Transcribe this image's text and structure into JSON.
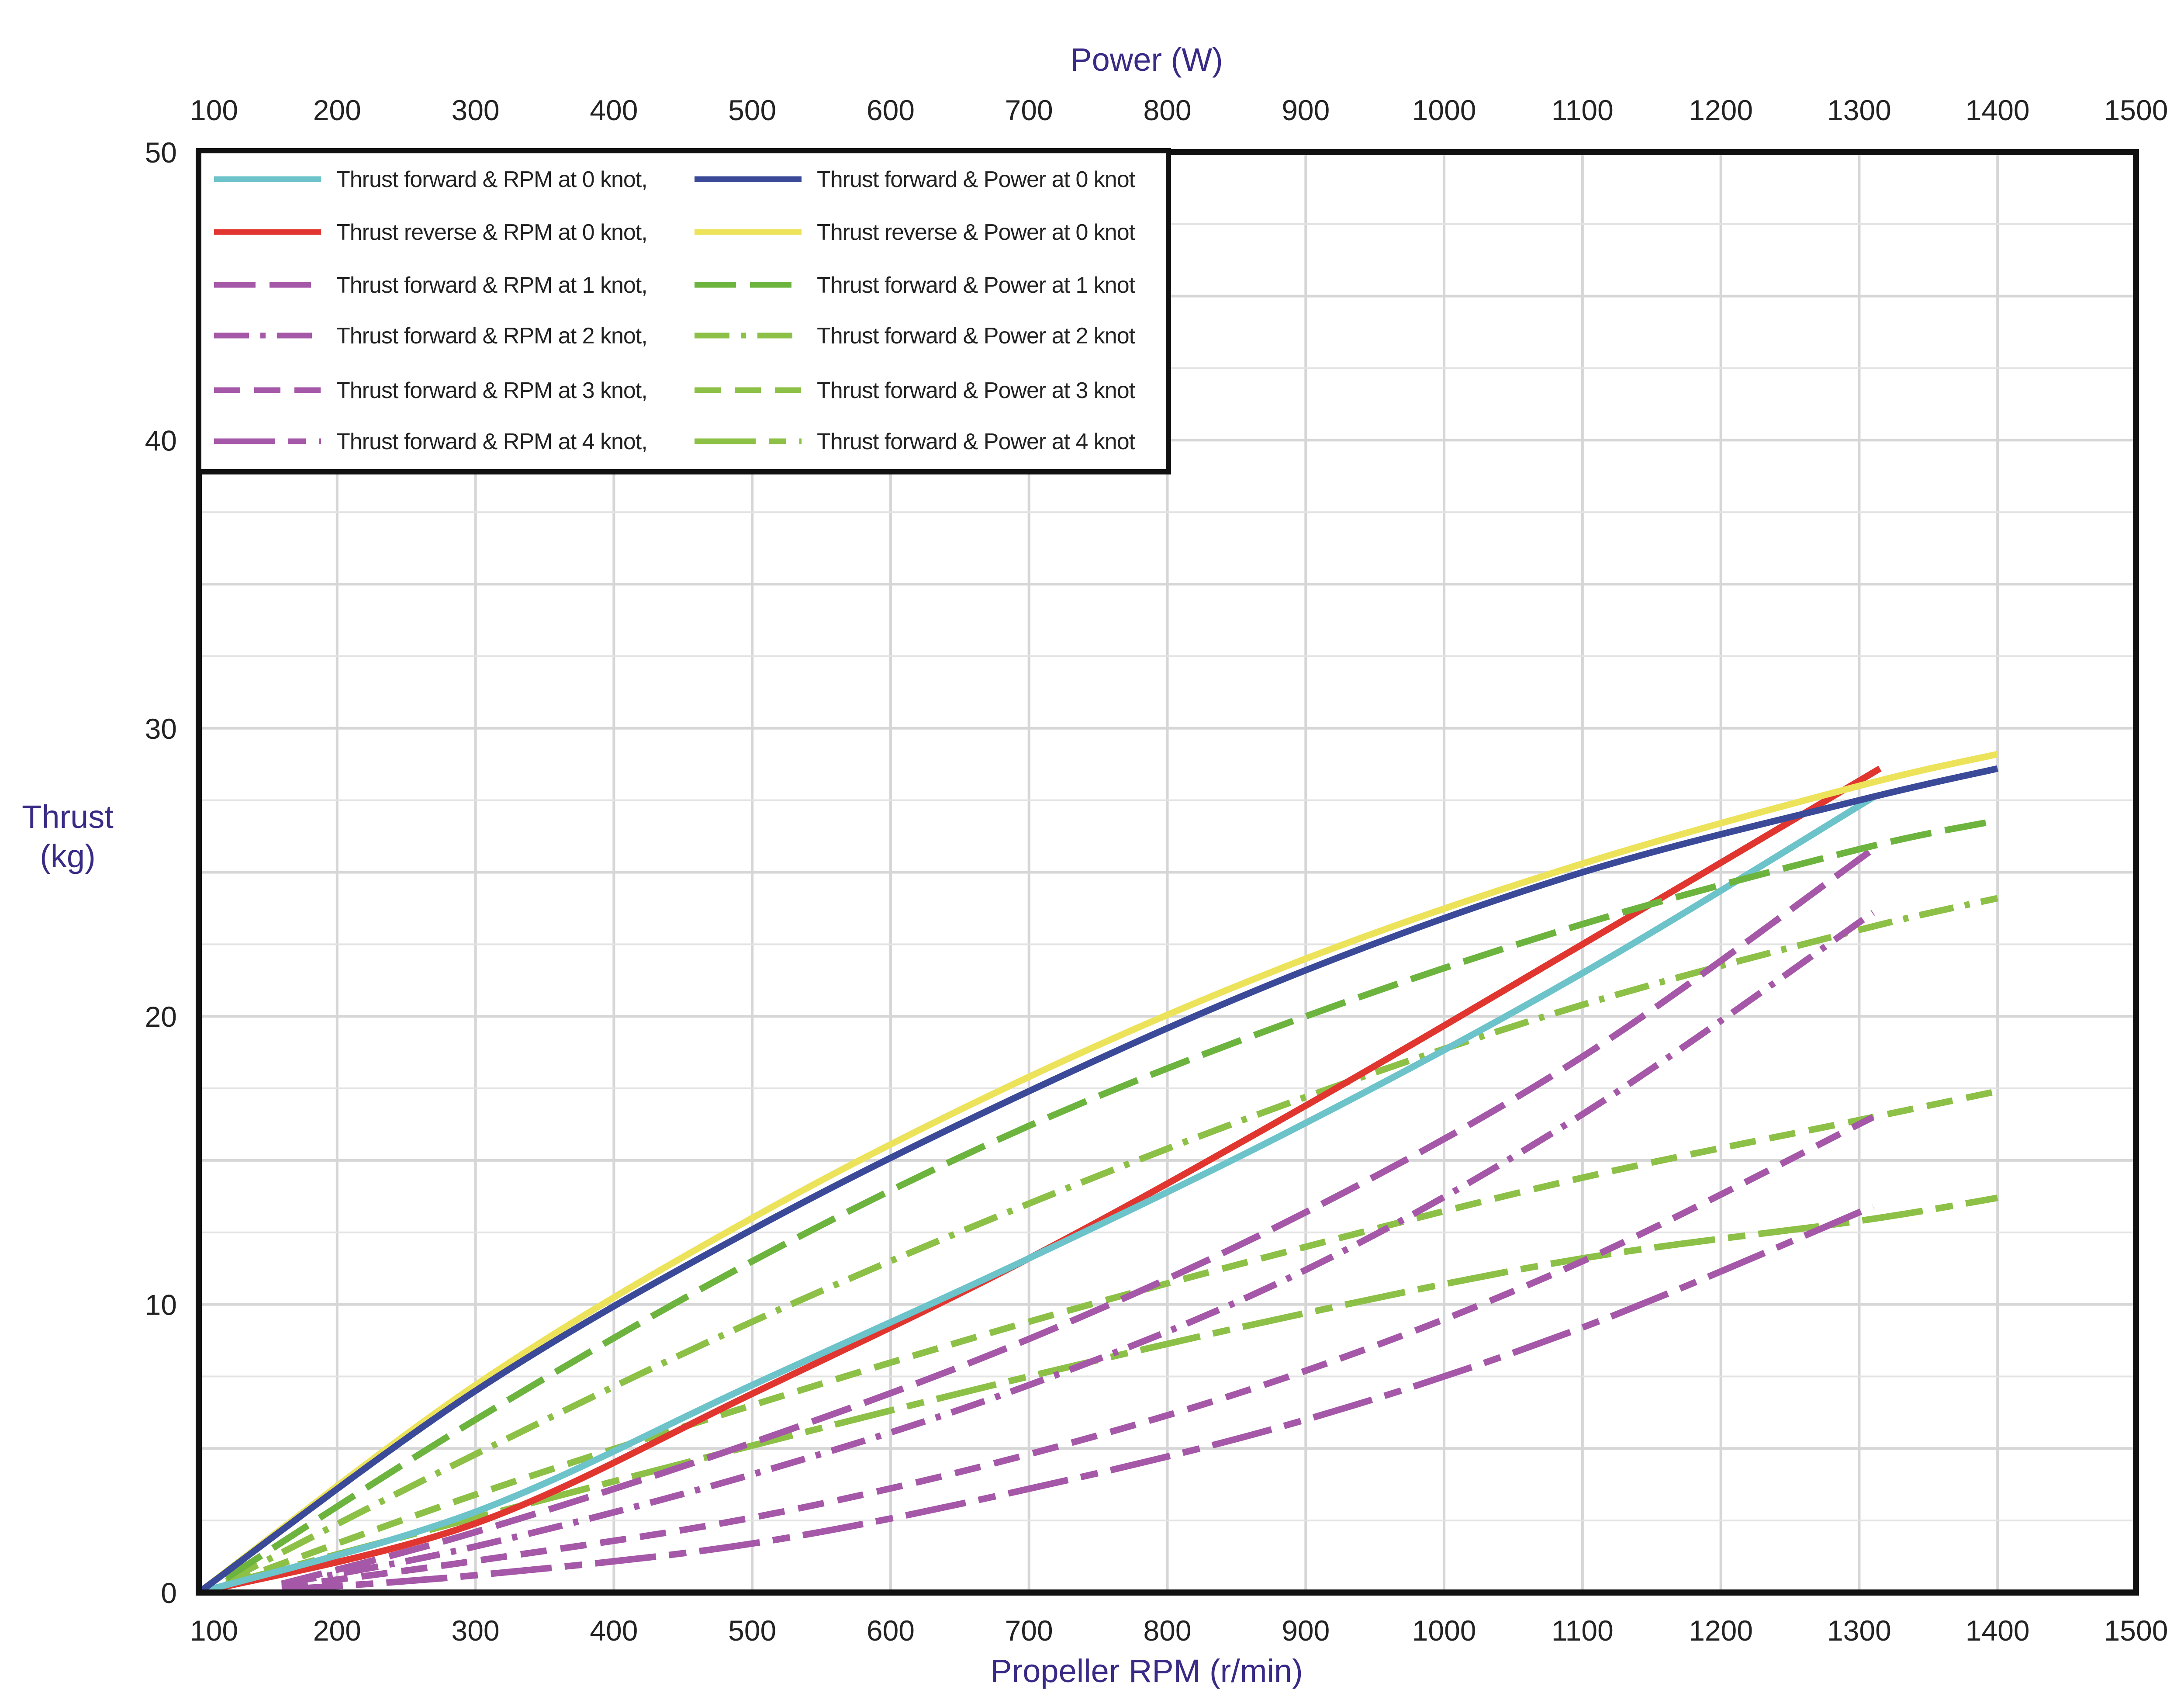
{
  "chart_data": {
    "type": "line",
    "title": "",
    "x_bottom": {
      "label": "Propeller RPM (r/min)",
      "range": [
        100,
        1500
      ],
      "ticks": [
        100,
        200,
        300,
        400,
        500,
        600,
        700,
        800,
        900,
        1000,
        1100,
        1200,
        1300,
        1400,
        1500
      ]
    },
    "x_top": {
      "label": "Power (W)",
      "range": [
        100,
        1500
      ],
      "ticks": [
        100,
        200,
        300,
        400,
        500,
        600,
        700,
        800,
        900,
        1000,
        1100,
        1200,
        1300,
        1400,
        1500
      ]
    },
    "y": {
      "label_line1": "Thrust",
      "label_line2": "(kg)",
      "range": [
        0,
        50
      ],
      "ticks": [
        0,
        10,
        20,
        30,
        40,
        50
      ]
    },
    "grid": true,
    "legend": {
      "placement": "top-left"
    },
    "series": [
      {
        "name": "Thrust forward &  RPM at 0 knot,",
        "axis": "rpm",
        "color": "#6cc3c9",
        "dash": "solid",
        "x": [
          100,
          300,
          500,
          700,
          900,
          1100,
          1310
        ],
        "y": [
          0,
          2.8,
          7.2,
          11.6,
          16.3,
          21.5,
          27.6
        ]
      },
      {
        "name": "Thrust reverse  &  RPM at 0 knot,",
        "axis": "rpm",
        "color": "#e1362f",
        "dash": "solid",
        "x": [
          100,
          300,
          500,
          700,
          900,
          1100,
          1315
        ],
        "y": [
          0,
          2.4,
          6.9,
          11.6,
          16.9,
          22.5,
          28.6
        ]
      },
      {
        "name": "Thrust forward &  RPM at 1 knot,",
        "axis": "rpm",
        "color": "#a557a8",
        "dash": "long",
        "x": [
          160,
          300,
          500,
          700,
          900,
          1100,
          1310
        ],
        "y": [
          0.3,
          2.1,
          5.2,
          8.8,
          13.2,
          18.6,
          25.8
        ]
      },
      {
        "name": "Thrust forward &  RPM at 2 knot,",
        "axis": "rpm",
        "color": "#a557a8",
        "dash": "dashdot",
        "x": [
          160,
          300,
          500,
          700,
          900,
          1100,
          1310
        ],
        "y": [
          0.3,
          1.6,
          4.1,
          7.2,
          11.2,
          16.6,
          23.6
        ]
      },
      {
        "name": "Thrust forward &  RPM at 3 knot,",
        "axis": "rpm",
        "color": "#a557a8",
        "dash": "medium",
        "x": [
          160,
          300,
          500,
          700,
          900,
          1100,
          1310
        ],
        "y": [
          0.2,
          1.1,
          2.6,
          4.8,
          7.7,
          11.5,
          16.5
        ]
      },
      {
        "name": "Thrust forward &  RPM at 4 knot,",
        "axis": "rpm",
        "color": "#a557a8",
        "dash": "dashlong",
        "x": [
          160,
          300,
          500,
          700,
          900,
          1100,
          1310
        ],
        "y": [
          0.1,
          0.6,
          1.7,
          3.6,
          6.0,
          9.2,
          13.4
        ]
      },
      {
        "name": "Thrust forward & Power at 0 knot",
        "axis": "power",
        "color": "#3b4a98",
        "dash": "solid",
        "x": [
          100,
          300,
          500,
          700,
          900,
          1100,
          1300,
          1400
        ],
        "y": [
          0,
          7.0,
          12.6,
          17.4,
          21.6,
          25.0,
          27.5,
          28.6
        ]
      },
      {
        "name": "Thrust reverse & Power at 0 knot",
        "axis": "power",
        "color": "#ece35a",
        "dash": "solid",
        "x": [
          100,
          300,
          500,
          700,
          900,
          1100,
          1300,
          1400
        ],
        "y": [
          0,
          7.2,
          13.0,
          17.9,
          22.0,
          25.3,
          28.0,
          29.1
        ]
      },
      {
        "name": "Thrust forward & Power at 1 knot",
        "axis": "power",
        "color": "#6db43f",
        "dash": "long",
        "x": [
          120,
          300,
          500,
          700,
          900,
          1100,
          1300,
          1400
        ],
        "y": [
          0.5,
          6.0,
          11.5,
          16.2,
          20.0,
          23.2,
          25.8,
          26.8
        ]
      },
      {
        "name": "Thrust forward & Power at 2 knot",
        "axis": "power",
        "color": "#8dc046",
        "dash": "dashdot",
        "x": [
          120,
          300,
          500,
          700,
          900,
          1100,
          1300,
          1400
        ],
        "y": [
          0.4,
          4.8,
          9.4,
          13.5,
          17.2,
          20.4,
          23.0,
          24.1
        ]
      },
      {
        "name": "Thrust forward & Power at 3 knot",
        "axis": "power",
        "color": "#8dc046",
        "dash": "medium",
        "x": [
          120,
          300,
          500,
          700,
          900,
          1100,
          1300,
          1400
        ],
        "y": [
          0.3,
          3.4,
          6.5,
          9.4,
          12.0,
          14.4,
          16.4,
          17.4
        ]
      },
      {
        "name": "Thrust forward & Power at 4 knot",
        "axis": "power",
        "color": "#8dc046",
        "dash": "dashlong",
        "x": [
          120,
          300,
          500,
          700,
          900,
          1100,
          1300,
          1400
        ],
        "y": [
          0.3,
          2.6,
          5.1,
          7.5,
          9.7,
          11.6,
          12.9,
          13.7
        ]
      }
    ]
  }
}
